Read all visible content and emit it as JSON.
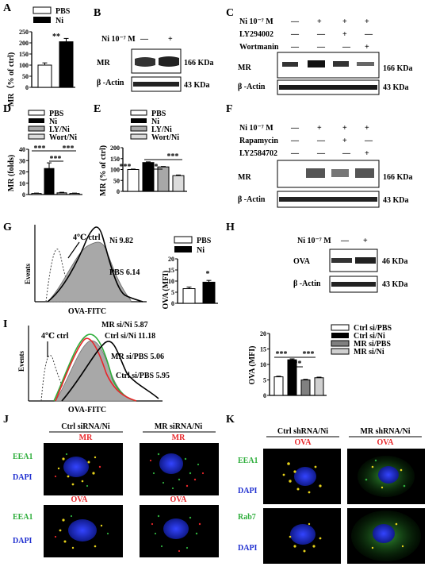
{
  "colors": {
    "red": "#e8262a",
    "green": "#2fae3c",
    "blue": "#2030d0",
    "gray_fill": "#a8a8a8",
    "black": "#000000"
  },
  "panel_labels": [
    "A",
    "B",
    "C",
    "D",
    "E",
    "F",
    "G",
    "H",
    "I",
    "J",
    "K"
  ],
  "A": {
    "legend": [
      "PBS",
      "Ni"
    ],
    "ylabel": "MR（% of ctrl)",
    "yticks": [
      "0",
      "50",
      "100",
      "150",
      "200",
      "250"
    ],
    "sig": "**",
    "chart_data": {
      "type": "bar",
      "categories": [
        "PBS",
        "Ni"
      ],
      "values": [
        100,
        205
      ],
      "errors": [
        10,
        15
      ],
      "ylim": [
        0,
        250
      ]
    }
  },
  "B": {
    "treat_label": "Ni 10⁻⁷ M",
    "signs": [
      "—",
      "+"
    ],
    "rows": [
      "MR",
      "β -Actin"
    ],
    "sizes": [
      "166 KDa",
      "43 KDa"
    ]
  },
  "C": {
    "rows_treat": [
      {
        "label": "Ni 10⁻⁷ M",
        "signs": [
          "—",
          "+",
          "+",
          "+"
        ]
      },
      {
        "label": "LY294002",
        "signs": [
          "—",
          "—",
          "+",
          "—"
        ]
      },
      {
        "label": "Wortmanin",
        "signs": [
          "—",
          "—",
          "—",
          "+"
        ]
      }
    ],
    "rows": [
      "MR",
      "β -Actin"
    ],
    "sizes": [
      "166 KDa",
      "43 KDa"
    ]
  },
  "D": {
    "legend": [
      "PBS",
      "Ni",
      "LY/Ni",
      "Wort/Ni"
    ],
    "ylabel": "MR (folds)",
    "yticks": [
      "0",
      "10",
      "20",
      "30",
      "40"
    ],
    "sig": [
      "***",
      "***",
      "***"
    ],
    "chart_data": {
      "type": "bar",
      "categories": [
        "PBS",
        "Ni",
        "LY/Ni",
        "Wort/Ni"
      ],
      "values": [
        1,
        23,
        1.5,
        1
      ],
      "errors": [
        0.3,
        5,
        0.5,
        0.3
      ],
      "ylim": [
        0,
        40
      ]
    }
  },
  "E": {
    "legend": [
      "PBS",
      "Ni",
      "LY/Ni",
      "Wort/Ni"
    ],
    "ylabel": "MR (% of ctrl)",
    "yticks": [
      "0",
      "50",
      "100",
      "150",
      "200"
    ],
    "sig": [
      "***",
      "***",
      "***"
    ],
    "chart_data": {
      "type": "bar",
      "categories": [
        "PBS",
        "Ni",
        "LY/Ni",
        "Wort/Ni"
      ],
      "values": [
        100,
        132,
        112,
        72
      ],
      "errors": [
        2,
        3,
        2,
        3
      ],
      "ylim": [
        0,
        200
      ]
    }
  },
  "F": {
    "rows_treat": [
      {
        "label": "Ni 10⁻⁷ M",
        "signs": [
          "—",
          "+",
          "+",
          "+"
        ]
      },
      {
        "label": "Rapamycin",
        "signs": [
          "—",
          "—",
          "+",
          "—"
        ]
      },
      {
        "label": "LY2584702",
        "signs": [
          "—",
          "—",
          "—",
          "+"
        ]
      }
    ],
    "rows": [
      "MR",
      "β -Actin"
    ],
    "sizes": [
      "166 KDa",
      "43 KDa"
    ]
  },
  "G": {
    "hist_labels": [
      "4℃ ctrl",
      "Ni 9.82",
      "PBS 6.14"
    ],
    "ylabel": "Events",
    "xlabel": "OVA-FITC",
    "legend": [
      "PBS",
      "Ni"
    ],
    "bar_ylabel": "OVA (MFI)",
    "yticks": [
      "0",
      "5",
      "10",
      "15",
      "20"
    ],
    "sig": "*",
    "chart_data": {
      "type": "bar",
      "categories": [
        "PBS",
        "Ni"
      ],
      "values": [
        6.6,
        9.5
      ],
      "errors": [
        0.7,
        0.8
      ],
      "ylim": [
        0,
        20
      ]
    }
  },
  "H": {
    "treat_label": "Ni 10⁻⁷ M",
    "signs": [
      "—",
      "+"
    ],
    "rows": [
      "OVA",
      "β -Actin"
    ],
    "sizes": [
      "46 KDa",
      "43 KDa"
    ]
  },
  "I": {
    "hist_labels": [
      "4℃ ctrl",
      "MR si/Ni 5.87",
      "Ctrl si/Ni 11.18",
      "MR si/PBS 5.06",
      "Ctrl si/PBS 5.95"
    ],
    "ylabel": "Events",
    "xlabel": "OVA-FITC",
    "legend": [
      "Ctrl si/PBS",
      "Ctrl si/Ni",
      "MR si/PBS",
      "MR si/Ni"
    ],
    "bar_ylabel": "OVA (MFI)",
    "yticks": [
      "0",
      "5",
      "10",
      "15",
      "20"
    ],
    "sig": [
      "***",
      "***",
      "***"
    ],
    "chart_data": {
      "type": "bar",
      "categories": [
        "Ctrl si/PBS",
        "Ctrl si/Ni",
        "MR si/PBS",
        "MR si/Ni"
      ],
      "values": [
        6,
        11.5,
        5,
        5.7
      ],
      "errors": [
        0.2,
        0.3,
        0.2,
        0.2
      ],
      "ylim": [
        0,
        20
      ]
    }
  },
  "J": {
    "cols": [
      "Ctrl siRNA/Ni",
      "MR siRNA/Ni"
    ],
    "top_marker": "MR",
    "bottom_marker": "OVA",
    "left_labels": [
      "EEA1",
      "DAPI",
      "EEA1",
      "DAPI"
    ]
  },
  "K": {
    "cols": [
      "Ctrl shRNA/Ni",
      "MR shRNA/Ni"
    ],
    "top_marker": "OVA",
    "bottom_marker": "OVA",
    "left_labels": [
      "EEA1",
      "DAPI",
      "Rab7",
      "DAPI"
    ]
  }
}
